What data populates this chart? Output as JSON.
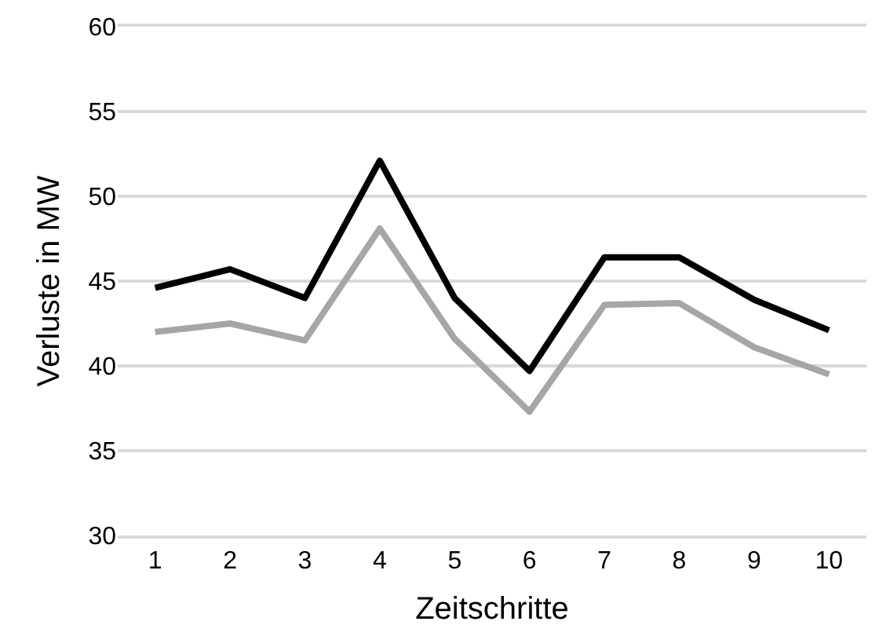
{
  "chart_data": {
    "type": "line",
    "xlabel": "Zeitschritte",
    "ylabel": "Verluste in MW",
    "categories": [
      "1",
      "2",
      "3",
      "4",
      "5",
      "6",
      "7",
      "8",
      "9",
      "10"
    ],
    "series": [
      {
        "color": "#000000",
        "values": [
          44.6,
          45.7,
          44.0,
          52.1,
          44.0,
          39.7,
          46.4,
          46.4,
          43.9,
          42.1
        ]
      },
      {
        "color": "#a6a6a6",
        "values": [
          42.0,
          42.5,
          41.5,
          48.1,
          41.6,
          37.3,
          43.6,
          43.7,
          41.1,
          39.5
        ]
      }
    ],
    "ylim": [
      30,
      60
    ],
    "yticks": [
      30,
      35,
      40,
      45,
      50,
      55,
      60
    ],
    "grid": "y",
    "marker": "none",
    "line_style": "solid"
  }
}
